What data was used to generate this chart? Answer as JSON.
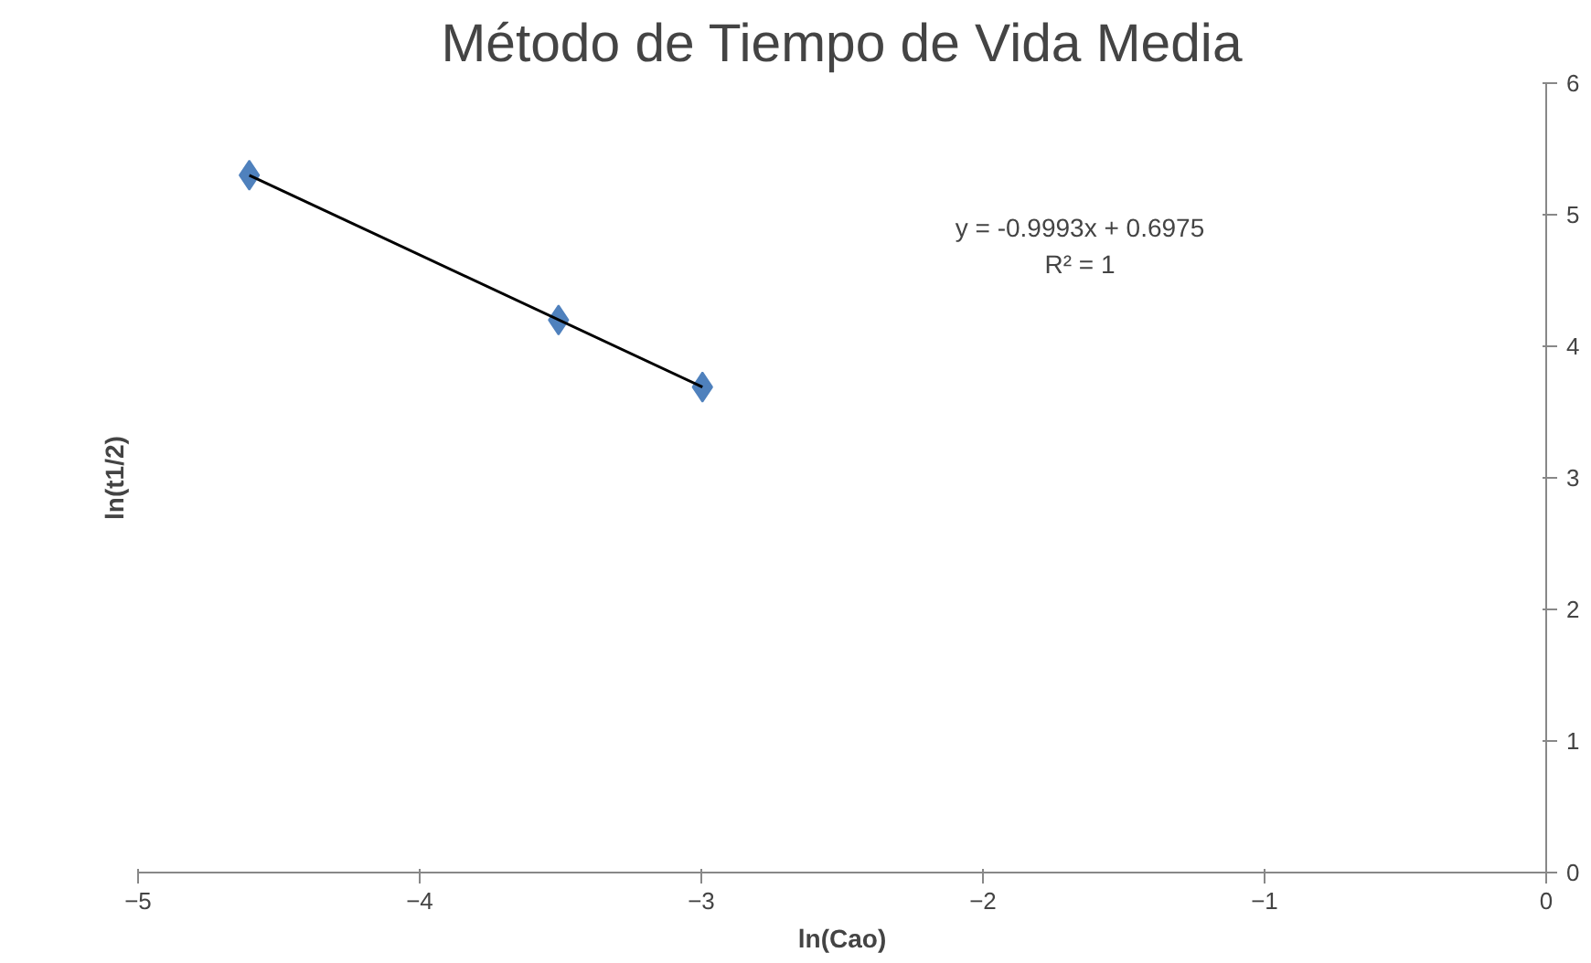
{
  "chart_data": {
    "type": "scatter",
    "title": "Método de Tiempo de Vida Media",
    "xlabel": "ln(Cao)",
    "ylabel": "ln(t1/2)",
    "x": [
      -4.605,
      -3.507,
      -2.996
    ],
    "series": [
      {
        "color": "#4f81bd",
        "marker": "diamond",
        "values": [
          5.3,
          4.2,
          3.69
        ]
      },
      {
        "type": "line",
        "color": "#000000",
        "x": [
          -4.605,
          -2.996
        ],
        "values": [
          5.3,
          3.69
        ]
      }
    ],
    "annotations": [
      "y = -0.9993x + 0.6975\nR² = 1"
    ],
    "xlim": [
      -5,
      0
    ],
    "xticks": [
      -5,
      -4,
      -3,
      -2,
      -1,
      0
    ],
    "ylim": [
      0,
      6
    ],
    "yticks": [
      0,
      1,
      2,
      3,
      4,
      5,
      6
    ]
  }
}
